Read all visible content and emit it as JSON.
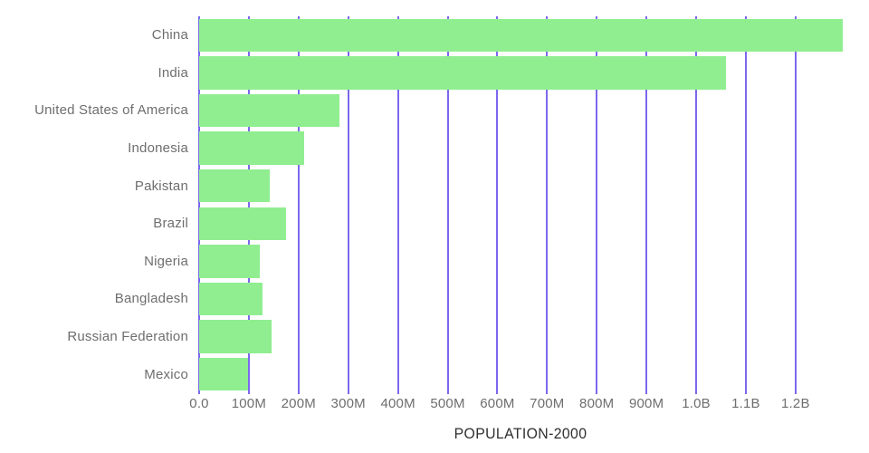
{
  "chart_data": {
    "type": "bar",
    "orientation": "horizontal",
    "title": "POPULATION-2000",
    "categories": [
      "China",
      "India",
      "United States of America",
      "Indonesia",
      "Pakistan",
      "Brazil",
      "Nigeria",
      "Bangladesh",
      "Russian Federation",
      "Mexico"
    ],
    "values": [
      1295000000,
      1059600000,
      282200000,
      211500000,
      142300000,
      174800000,
      122300000,
      127700000,
      146600000,
      98300000
    ],
    "xlabel": "POPULATION-2000",
    "ylabel": "",
    "xlim": [
      0,
      1295000000
    ],
    "x_ticks": [
      {
        "value": 0,
        "label": "0.0"
      },
      {
        "value": 100000000,
        "label": "100M"
      },
      {
        "value": 200000000,
        "label": "200M"
      },
      {
        "value": 300000000,
        "label": "300M"
      },
      {
        "value": 400000000,
        "label": "400M"
      },
      {
        "value": 500000000,
        "label": "500M"
      },
      {
        "value": 600000000,
        "label": "600M"
      },
      {
        "value": 700000000,
        "label": "700M"
      },
      {
        "value": 800000000,
        "label": "800M"
      },
      {
        "value": 900000000,
        "label": "900M"
      },
      {
        "value": 1000000000,
        "label": "1.0B"
      },
      {
        "value": 1100000000,
        "label": "1.1B"
      },
      {
        "value": 1200000000,
        "label": "1.2B"
      }
    ],
    "grid": true,
    "gridline_orientation": "vertical",
    "legend": false,
    "colors": {
      "bar": "#90ee90",
      "gridline": "#7b68ee",
      "tick_label": "#6e6e6e",
      "title": "#2f2f2f"
    }
  }
}
